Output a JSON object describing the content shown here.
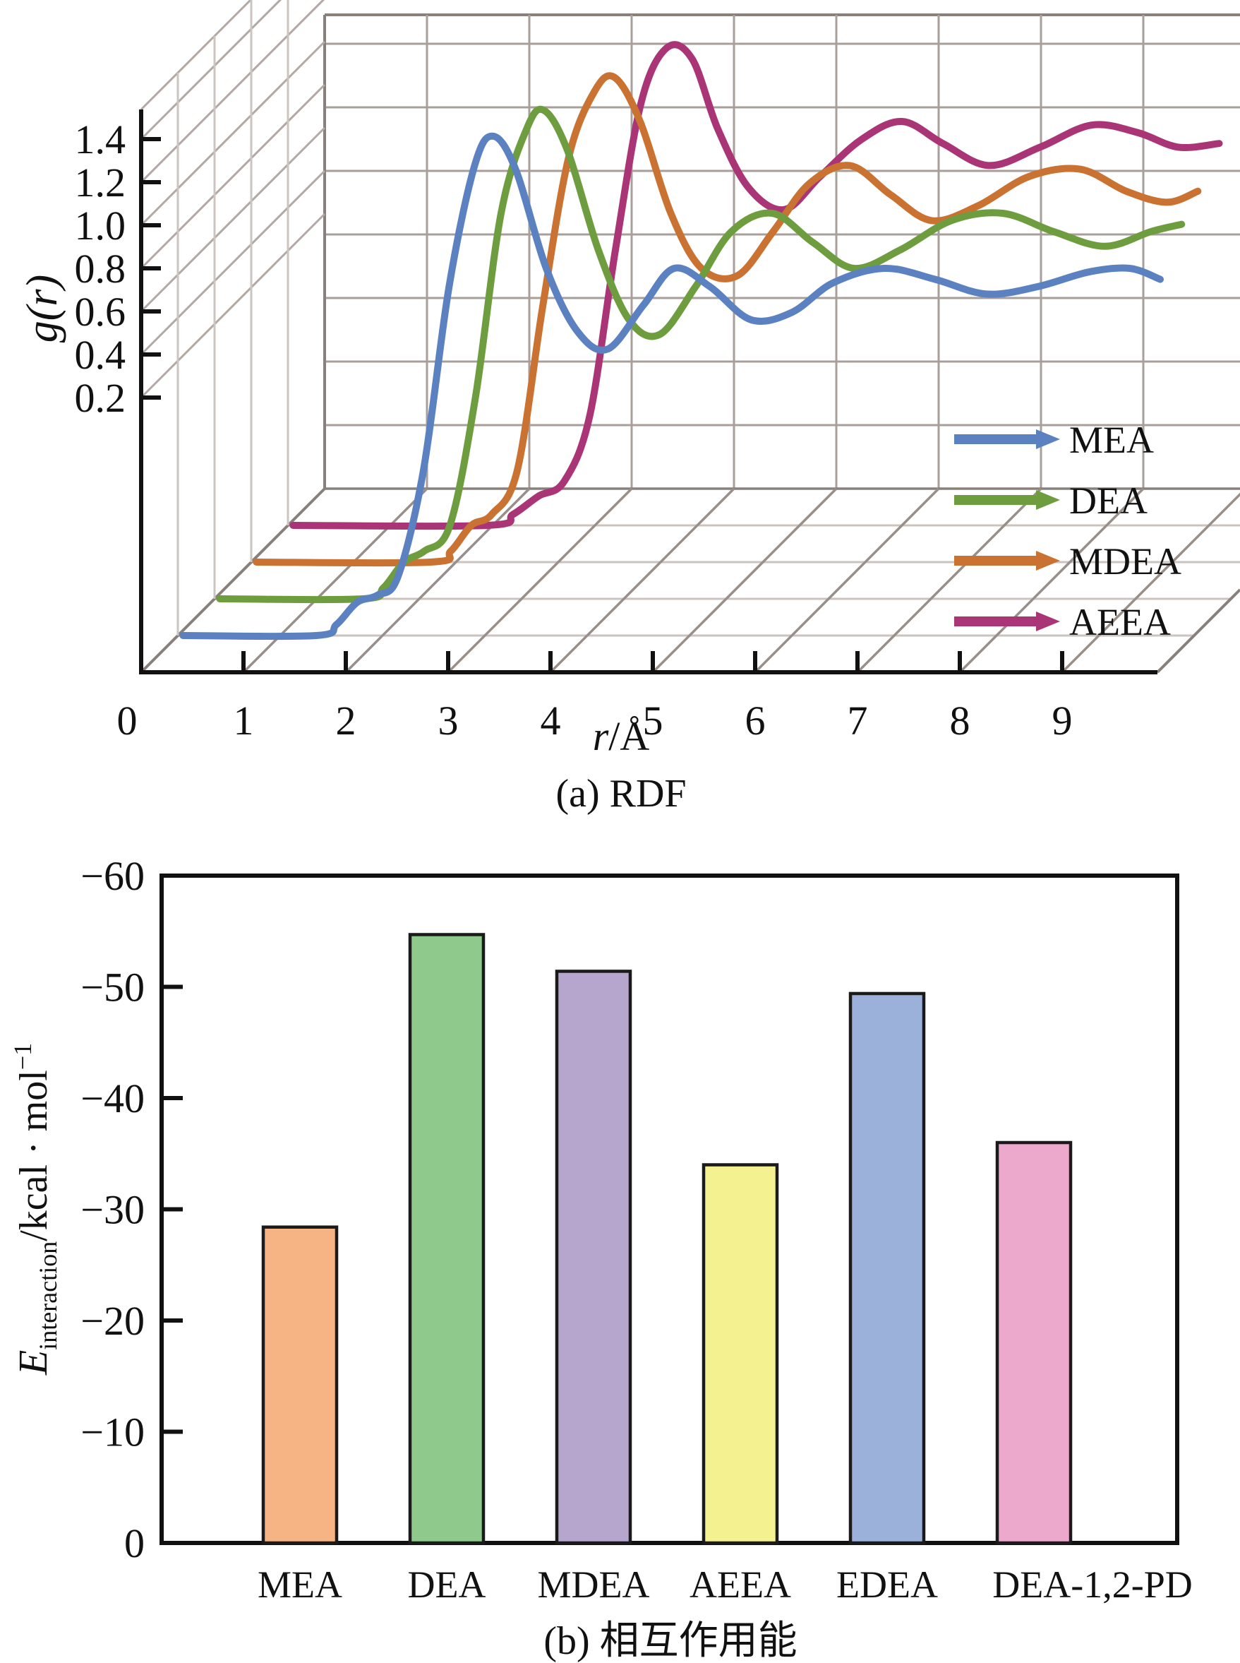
{
  "chart_data": [
    {
      "type": "line",
      "projection": "3d-waterfall",
      "title": "(a) RDF",
      "xlabel": "r/Å",
      "xlabel_italic_part": "r",
      "xlabel_unit_part": "/Å",
      "ylabel": "g(r)",
      "xlim": [
        0,
        10
      ],
      "x_tick_labels": [
        "0",
        "1",
        "2",
        "3",
        "4",
        "5",
        "6",
        "7",
        "8",
        "9"
      ],
      "y_tick_labels": [
        "1.4",
        "1.2",
        "1.0",
        "0.8",
        "0.6",
        "0.4",
        "0.2"
      ],
      "grid": true,
      "legend_position": "right-middle",
      "depth_order_front_to_back": [
        "MEA",
        "DEA",
        "MDEA",
        "AEEA"
      ],
      "series": [
        {
          "name": "MEA",
          "color": "#5b81c1",
          "points": [
            [
              0.05,
              0
            ],
            [
              1.35,
              0
            ],
            [
              1.55,
              0.03
            ],
            [
              1.75,
              0.09
            ],
            [
              1.95,
              0.11
            ],
            [
              2.15,
              0.16
            ],
            [
              2.4,
              0.45
            ],
            [
              2.65,
              0.95
            ],
            [
              2.9,
              1.28
            ],
            [
              3.08,
              1.36
            ],
            [
              3.3,
              1.27
            ],
            [
              3.6,
              1.0
            ],
            [
              3.9,
              0.83
            ],
            [
              4.2,
              0.78
            ],
            [
              4.55,
              0.9
            ],
            [
              4.85,
              1.0
            ],
            [
              5.2,
              0.95
            ],
            [
              5.6,
              0.86
            ],
            [
              6.0,
              0.88
            ],
            [
              6.4,
              0.96
            ],
            [
              6.9,
              1.0
            ],
            [
              7.4,
              0.97
            ],
            [
              7.9,
              0.93
            ],
            [
              8.4,
              0.95
            ],
            [
              8.9,
              0.99
            ],
            [
              9.3,
              1.0
            ],
            [
              9.6,
              0.97
            ]
          ]
        },
        {
          "name": "DEA",
          "color": "#6e9d40",
          "points": [
            [
              0.05,
              0
            ],
            [
              1.45,
              0
            ],
            [
              1.65,
              0.03
            ],
            [
              1.85,
              0.1
            ],
            [
              2.05,
              0.13
            ],
            [
              2.3,
              0.2
            ],
            [
              2.55,
              0.55
            ],
            [
              2.8,
              1.05
            ],
            [
              3.05,
              1.28
            ],
            [
              3.22,
              1.33
            ],
            [
              3.45,
              1.22
            ],
            [
              3.75,
              0.95
            ],
            [
              4.05,
              0.76
            ],
            [
              4.35,
              0.72
            ],
            [
              4.7,
              0.85
            ],
            [
              5.05,
              1.0
            ],
            [
              5.45,
              1.05
            ],
            [
              5.85,
              0.97
            ],
            [
              6.25,
              0.9
            ],
            [
              6.7,
              0.95
            ],
            [
              7.2,
              1.03
            ],
            [
              7.7,
              1.05
            ],
            [
              8.2,
              1.0
            ],
            [
              8.7,
              0.96
            ],
            [
              9.15,
              1.0
            ],
            [
              9.45,
              1.02
            ]
          ]
        },
        {
          "name": "MDEA",
          "color": "#c97231",
          "points": [
            [
              0.05,
              0
            ],
            [
              1.75,
              0
            ],
            [
              1.95,
              0.03
            ],
            [
              2.15,
              0.1
            ],
            [
              2.35,
              0.13
            ],
            [
              2.6,
              0.25
            ],
            [
              2.85,
              0.7
            ],
            [
              3.1,
              1.1
            ],
            [
              3.35,
              1.28
            ],
            [
              3.55,
              1.32
            ],
            [
              3.8,
              1.2
            ],
            [
              4.1,
              0.95
            ],
            [
              4.4,
              0.8
            ],
            [
              4.75,
              0.78
            ],
            [
              5.1,
              0.9
            ],
            [
              5.45,
              1.03
            ],
            [
              5.85,
              1.08
            ],
            [
              6.25,
              1.0
            ],
            [
              6.65,
              0.93
            ],
            [
              7.1,
              0.97
            ],
            [
              7.6,
              1.05
            ],
            [
              8.1,
              1.07
            ],
            [
              8.55,
              1.01
            ],
            [
              8.95,
              0.98
            ],
            [
              9.25,
              1.01
            ]
          ]
        },
        {
          "name": "AEEA",
          "color": "#a93577",
          "points": [
            [
              0.05,
              0
            ],
            [
              1.95,
              0
            ],
            [
              2.2,
              0.03
            ],
            [
              2.45,
              0.08
            ],
            [
              2.7,
              0.12
            ],
            [
              2.95,
              0.3
            ],
            [
              3.2,
              0.75
            ],
            [
              3.45,
              1.15
            ],
            [
              3.7,
              1.3
            ],
            [
              3.95,
              1.27
            ],
            [
              4.2,
              1.08
            ],
            [
              4.5,
              0.92
            ],
            [
              4.85,
              0.86
            ],
            [
              5.2,
              0.95
            ],
            [
              5.6,
              1.05
            ],
            [
              6.0,
              1.1
            ],
            [
              6.4,
              1.04
            ],
            [
              6.85,
              0.98
            ],
            [
              7.35,
              1.03
            ],
            [
              7.85,
              1.09
            ],
            [
              8.3,
              1.07
            ],
            [
              8.7,
              1.03
            ],
            [
              9.1,
              1.04
            ]
          ]
        }
      ]
    },
    {
      "type": "bar",
      "title": "(b) 相互作用能",
      "ylabel": "E_interaction/kcal · mol⁻¹",
      "ylabel_parts": {
        "symbol": "E",
        "subscript": "interaction",
        "unit": "/kcal · mol",
        "superscript": "−1"
      },
      "categories": [
        "MEA",
        "DEA",
        "MDEA",
        "AEEA",
        "EDEA",
        "DEA-1,2-PD"
      ],
      "values": [
        -28.4,
        -54.7,
        -51.4,
        -34.0,
        -49.4,
        -36.0
      ],
      "bar_colors": [
        "#f6b384",
        "#8fc98b",
        "#b6a6ce",
        "#f4f191",
        "#9cb1da",
        "#eca9cb"
      ],
      "bar_edge_color": "#1a1a1a",
      "ylim": [
        0,
        -60
      ],
      "y_tick_labels": [
        "−60",
        "−50",
        "−40",
        "−30",
        "−20",
        "−10",
        "0"
      ],
      "y_tick_values": [
        -60,
        -50,
        -40,
        -30,
        -20,
        -10,
        0
      ],
      "grid": false
    }
  ]
}
